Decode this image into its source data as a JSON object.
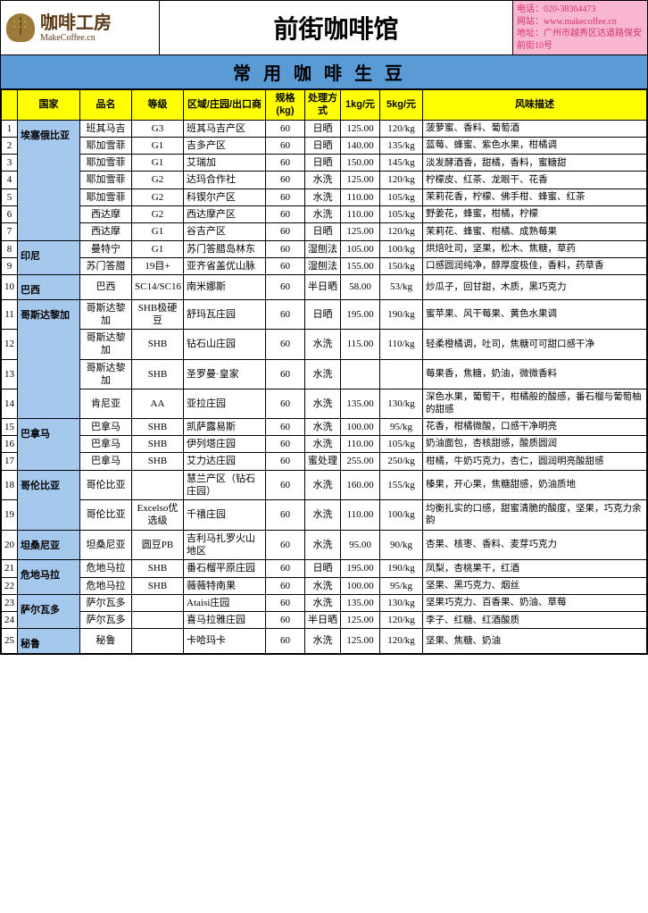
{
  "header": {
    "logo_cn": "咖啡工房",
    "logo_en": "MakeCoffee.cn",
    "title": "前街咖啡馆",
    "contact": {
      "phone_label": "电话：",
      "phone": "020-38364473",
      "web_label": "网站：",
      "web": "www.makecoffee.cn",
      "addr_label": "地址：",
      "addr": "广州市越秀区达道路保安前街10号"
    }
  },
  "section_title": "常用咖啡生豆",
  "columns": [
    "",
    "国家",
    "品名",
    "等级",
    "区域/庄园/出口商",
    "规格(kg)",
    "处理方式",
    "1kg/元",
    "5kg/元",
    "风味描述"
  ],
  "groups": [
    {
      "country": "埃塞俄比亚",
      "rows": [
        {
          "n": "1",
          "name": "班其马吉",
          "grade": "G3",
          "region": "班其马吉产区",
          "spec": "60",
          "proc": "日晒",
          "p1": "125.00",
          "p5": "120/kg",
          "flavor": "菠萝蜜、香料、葡萄酒"
        },
        {
          "n": "2",
          "name": "耶加雪菲",
          "grade": "G1",
          "region": "吉多产区",
          "spec": "60",
          "proc": "日晒",
          "p1": "140.00",
          "p5": "135/kg",
          "flavor": "蓝莓、蜂蜜、紫色水果，柑橘调"
        },
        {
          "n": "3",
          "name": "耶加雪菲",
          "grade": "G1",
          "region": "艾瑞加",
          "spec": "60",
          "proc": "日晒",
          "p1": "150.00",
          "p5": "145/kg",
          "flavor": "淡发酵酒香，甜橘，香料，蜜糖甜"
        },
        {
          "n": "4",
          "name": "耶加雪菲",
          "grade": "G2",
          "region": "达玛合作社",
          "spec": "60",
          "proc": "水洗",
          "p1": "125.00",
          "p5": "120/kg",
          "flavor": "柠檬皮、红茶、龙眼干、花香"
        },
        {
          "n": "5",
          "name": "耶加雪菲",
          "grade": "G2",
          "region": "科锲尔产区",
          "spec": "60",
          "proc": "水洗",
          "p1": "110.00",
          "p5": "105/kg",
          "flavor": "茉莉花香，柠檬、佛手柑、蜂蜜、红茶"
        },
        {
          "n": "6",
          "name": "西达摩",
          "grade": "G2",
          "region": "西达摩产区",
          "spec": "60",
          "proc": "水洗",
          "p1": "110.00",
          "p5": "105/kg",
          "flavor": "野姜花，蜂蜜，柑橘，柠檬"
        },
        {
          "n": "7",
          "name": "西达摩",
          "grade": "G1",
          "region": "谷吉产区",
          "spec": "60",
          "proc": "日晒",
          "p1": "125.00",
          "p5": "120/kg",
          "flavor": "茉莉花、蜂蜜、柑橘、成熟莓果"
        }
      ]
    },
    {
      "country": "印尼",
      "rows": [
        {
          "n": "8",
          "name": "曼特宁",
          "grade": "G1",
          "region": "苏门答腊岛林东",
          "spec": "60",
          "proc": "湿刨法",
          "p1": "105.00",
          "p5": "100/kg",
          "flavor": "烘焙吐司，坚果，松木、焦糖，草药"
        },
        {
          "n": "9",
          "name": "苏门答腊",
          "grade": "19目+",
          "region": "亚齐省盖优山脉",
          "spec": "60",
          "proc": "湿刨法",
          "p1": "155.00",
          "p5": "150/kg",
          "flavor": "口感圆润纯净，醇厚度极佳，香料，药草香"
        }
      ]
    },
    {
      "country": "巴西",
      "rows": [
        {
          "n": "10",
          "name": "巴西",
          "grade": "SC14/SC16",
          "region": "南米娜斯",
          "spec": "60",
          "proc": "半日晒",
          "p1": "58.00",
          "p5": "53/kg",
          "flavor": "炒瓜子，回甘甜，木质，黑巧克力"
        }
      ]
    },
    {
      "country": "哥斯达黎加",
      "rows": [
        {
          "n": "11",
          "name": "哥斯达黎加",
          "grade": "SHB极硬豆",
          "region": "舒玛瓦庄园",
          "spec": "60",
          "proc": "日晒",
          "p1": "195.00",
          "p5": "190/kg",
          "flavor": "蜜苹果、风干莓果、黄色水果调"
        },
        {
          "n": "12",
          "name": "哥斯达黎加",
          "grade": "SHB",
          "region": "钻石山庄园",
          "spec": "60",
          "proc": "水洗",
          "p1": "115.00",
          "p5": "110/kg",
          "flavor": "轻柔橙橘调，吐司，焦糖可可甜口感干净"
        },
        {
          "n": "13",
          "name": "哥斯达黎加",
          "grade": "SHB",
          "region": "圣罗曼·皇家",
          "spec": "60",
          "proc": "水洗",
          "p1": "",
          "p5": "",
          "flavor": "莓果香，焦糖，奶油，微微香料"
        },
        {
          "n": "14",
          "name": "肯尼亚",
          "grade": "AA",
          "region": "亚拉庄园",
          "spec": "60",
          "proc": "水洗",
          "p1": "135.00",
          "p5": "130/kg",
          "flavor": "深色水果，葡萄干，柑橘般的酸感，番石榴与葡萄柚的甜感"
        }
      ]
    },
    {
      "country": "巴拿马",
      "rows": [
        {
          "n": "15",
          "name": "巴拿马",
          "grade": "SHB",
          "region": "凯萨露易斯",
          "spec": "60",
          "proc": "水洗",
          "p1": "100.00",
          "p5": "95/kg",
          "flavor": "花香，柑橘微酸，口感干净明亮"
        },
        {
          "n": "16",
          "name": "巴拿马",
          "grade": "SHB",
          "region": "伊列塔庄园",
          "spec": "60",
          "proc": "水洗",
          "p1": "110.00",
          "p5": "105/kg",
          "flavor": "奶油面包，杏核甜感，酸质圆润"
        },
        {
          "n": "17",
          "name": "巴拿马",
          "grade": "SHB",
          "region": "艾力达庄园",
          "spec": "60",
          "proc": "蜜处理",
          "p1": "255.00",
          "p5": "250/kg",
          "flavor": "柑橘，牛奶巧克力，杏仁，圆润明亮酸甜感"
        }
      ]
    },
    {
      "country": "哥伦比亚",
      "rows": [
        {
          "n": "18",
          "name": "哥伦比亚",
          "grade": "",
          "region": "慧兰产区（钻石庄园）",
          "spec": "60",
          "proc": "水洗",
          "p1": "160.00",
          "p5": "155/kg",
          "flavor": "榛果，开心果，焦糖甜感，奶油质地"
        },
        {
          "n": "19",
          "name": "哥伦比亚",
          "grade": "Excelso优选级",
          "region": "千禧庄园",
          "spec": "60",
          "proc": "水洗",
          "p1": "110.00",
          "p5": "100/kg",
          "flavor": "均衡扎实的口感，甜蜜清脆的酸度，坚果，巧克力余韵"
        }
      ]
    },
    {
      "country": "坦桑尼亚",
      "rows": [
        {
          "n": "20",
          "name": "坦桑尼亚",
          "grade": "圆豆PB",
          "region": "吉利马扎罗火山地区",
          "spec": "60",
          "proc": "水洗",
          "p1": "95.00",
          "p5": "90/kg",
          "flavor": "杏果、核枣、香料、麦芽巧克力"
        }
      ]
    },
    {
      "country": "危地马拉",
      "rows": [
        {
          "n": "21",
          "name": "危地马拉",
          "grade": "SHB",
          "region": "番石榴平原庄园",
          "spec": "60",
          "proc": "日晒",
          "p1": "195.00",
          "p5": "190/kg",
          "flavor": "凤梨，杏桃果干，红酒"
        },
        {
          "n": "22",
          "name": "危地马拉",
          "grade": "SHB",
          "region": "薇薇特南果",
          "spec": "60",
          "proc": "水洗",
          "p1": "100.00",
          "p5": "95/kg",
          "flavor": "坚果、黑巧克力、烟丝"
        }
      ]
    },
    {
      "country": "萨尔瓦多",
      "rows": [
        {
          "n": "23",
          "name": "萨尔瓦多",
          "grade": "",
          "region": "Ataisi庄园",
          "spec": "60",
          "proc": "水洗",
          "p1": "135.00",
          "p5": "130/kg",
          "flavor": "坚果巧克力、百香果、奶油、草莓"
        },
        {
          "n": "24",
          "name": "萨尔瓦多",
          "grade": "",
          "region": "喜马拉雅庄园",
          "spec": "60",
          "proc": "半日晒",
          "p1": "125.00",
          "p5": "120/kg",
          "flavor": "李子、红糖、红酒酸质"
        }
      ]
    },
    {
      "country": "秘鲁",
      "rows": [
        {
          "n": "25",
          "name": "秘鲁",
          "grade": "",
          "region": "卡哈玛卡",
          "spec": "60",
          "proc": "水洗",
          "p1": "125.00",
          "p5": "120/kg",
          "flavor": "坚果、焦糖、奶油"
        }
      ]
    }
  ],
  "colors": {
    "header_bg": "#ffff00",
    "section_bg": "#5a9ad5",
    "country_bg": "#a5c8ed",
    "contact_bg": "#f8b6d0",
    "contact_fg": "#d6336c"
  }
}
